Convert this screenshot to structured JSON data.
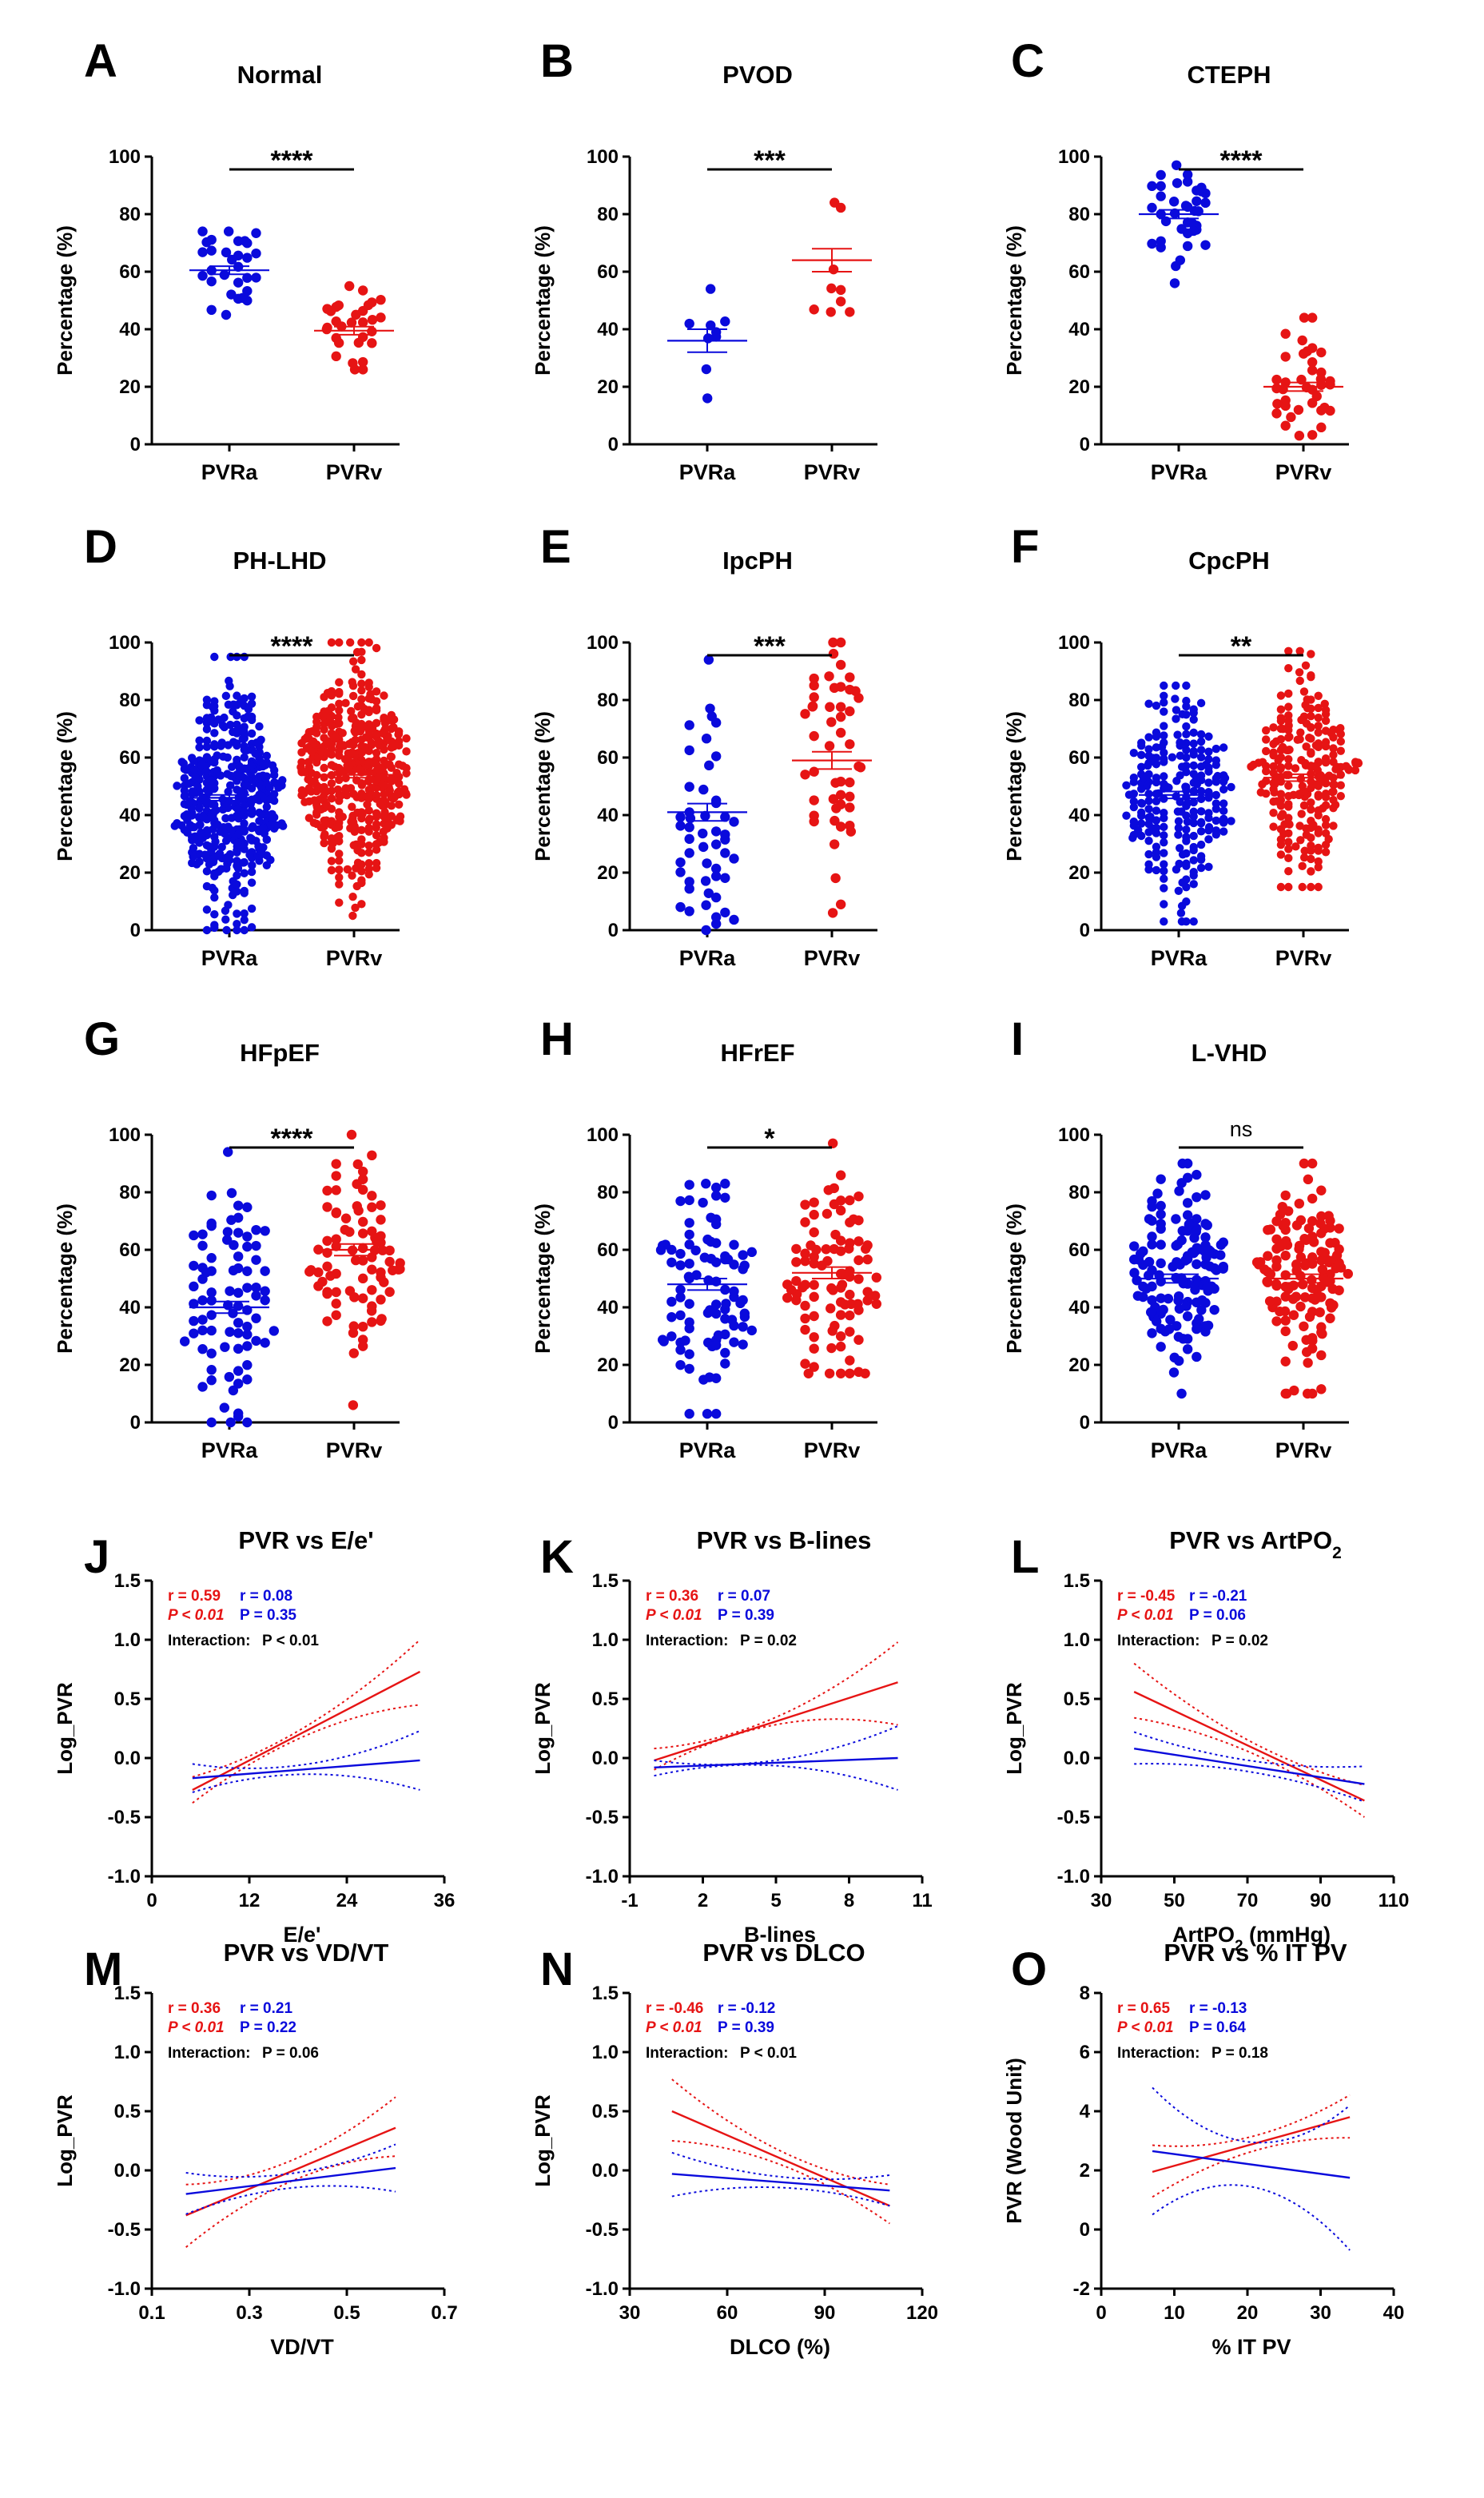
{
  "colors": {
    "PVRa": "#0a0adc",
    "PVRv": "#e61414"
  },
  "chart_data": [
    {
      "id": "A",
      "type": "scatter",
      "title": "Normal",
      "ylabel": "Percentage (%)",
      "ylim": [
        0,
        100
      ],
      "yticks": [
        "0",
        "20",
        "40",
        "60",
        "80",
        "100"
      ],
      "categories": [
        "PVRa",
        "PVRv"
      ],
      "significance": "****",
      "n": [
        30,
        30
      ],
      "means": [
        60.5,
        39.5
      ],
      "sem": [
        1.4,
        1.4
      ],
      "ranges": [
        [
          45,
          74
        ],
        [
          26,
          55
        ]
      ],
      "spread": [
        7,
        7
      ]
    },
    {
      "id": "B",
      "type": "scatter",
      "title": "PVOD",
      "ylabel": "Percentage (%)",
      "ylim": [
        0,
        100
      ],
      "yticks": [
        "0",
        "20",
        "40",
        "60",
        "80",
        "100"
      ],
      "categories": [
        "PVRa",
        "PVRv"
      ],
      "significance": "***",
      "n": [
        9,
        9
      ],
      "means": [
        36,
        64
      ],
      "sem": [
        4,
        4
      ],
      "ranges": [
        [
          16,
          54
        ],
        [
          46,
          84
        ]
      ],
      "spread": [
        12,
        12
      ]
    },
    {
      "id": "C",
      "type": "scatter",
      "title": "CTEPH",
      "ylabel": "Percentage (%)",
      "ylim": [
        0,
        100
      ],
      "yticks": [
        "0",
        "20",
        "40",
        "60",
        "80",
        "100"
      ],
      "categories": [
        "PVRa",
        "PVRv"
      ],
      "significance": "****",
      "n": [
        38,
        38
      ],
      "means": [
        80,
        20
      ],
      "sem": [
        1.5,
        1.5
      ],
      "ranges": [
        [
          56,
          97
        ],
        [
          3,
          44
        ]
      ],
      "spread": [
        8,
        9
      ]
    },
    {
      "id": "D",
      "type": "scatter",
      "title": "PH-LHD",
      "ylabel": "Percentage (%)",
      "ylim": [
        0,
        100
      ],
      "yticks": [
        "0",
        "20",
        "40",
        "60",
        "80",
        "100"
      ],
      "categories": [
        "PVRa",
        "PVRv"
      ],
      "significance": "****",
      "n": [
        450,
        450
      ],
      "means": [
        46,
        54
      ],
      "sem": [
        1,
        1
      ],
      "ranges": [
        [
          0,
          95
        ],
        [
          5,
          100
        ]
      ],
      "spread": [
        18,
        18
      ]
    },
    {
      "id": "E",
      "type": "scatter",
      "title": "IpcPH",
      "ylabel": "Percentage (%)",
      "ylim": [
        0,
        100
      ],
      "yticks": [
        "0",
        "20",
        "40",
        "60",
        "80",
        "100"
      ],
      "categories": [
        "PVRa",
        "PVRv"
      ],
      "significance": "***",
      "n": [
        50,
        50
      ],
      "means": [
        41,
        59
      ],
      "sem": [
        3,
        3
      ],
      "ranges": [
        [
          0,
          94
        ],
        [
          6,
          100
        ]
      ],
      "spread": [
        20,
        20
      ]
    },
    {
      "id": "F",
      "type": "scatter",
      "title": "CpcPH",
      "ylabel": "Percentage (%)",
      "ylim": [
        0,
        100
      ],
      "yticks": [
        "0",
        "20",
        "40",
        "60",
        "80",
        "100"
      ],
      "categories": [
        "PVRa",
        "PVRv"
      ],
      "significance": "**",
      "n": [
        240,
        240
      ],
      "means": [
        47,
        53
      ],
      "sem": [
        1.2,
        1.2
      ],
      "ranges": [
        [
          3,
          85
        ],
        [
          15,
          97
        ]
      ],
      "spread": [
        17,
        17
      ]
    },
    {
      "id": "G",
      "type": "scatter",
      "title": "HFpEF",
      "ylabel": "Percentage (%)",
      "ylim": [
        0,
        100
      ],
      "yticks": [
        "0",
        "20",
        "40",
        "60",
        "80",
        "100"
      ],
      "categories": [
        "PVRa",
        "PVRv"
      ],
      "significance": "****",
      "n": [
        85,
        85
      ],
      "means": [
        40,
        60
      ],
      "sem": [
        2,
        2
      ],
      "ranges": [
        [
          0,
          94
        ],
        [
          6,
          100
        ]
      ],
      "spread": [
        19,
        19
      ]
    },
    {
      "id": "H",
      "type": "scatter",
      "title": "HFrEF",
      "ylabel": "Percentage (%)",
      "ylim": [
        0,
        100
      ],
      "yticks": [
        "0",
        "20",
        "40",
        "60",
        "80",
        "100"
      ],
      "categories": [
        "PVRa",
        "PVRv"
      ],
      "significance": "*",
      "n": [
        95,
        95
      ],
      "means": [
        48,
        52
      ],
      "sem": [
        2,
        2
      ],
      "ranges": [
        [
          3,
          83
        ],
        [
          17,
          97
        ]
      ],
      "spread": [
        18,
        18
      ]
    },
    {
      "id": "I",
      "type": "scatter",
      "title": "L-VHD",
      "ylabel": "Percentage (%)",
      "ylim": [
        0,
        100
      ],
      "yticks": [
        "0",
        "20",
        "40",
        "60",
        "80",
        "100"
      ],
      "categories": [
        "PVRa",
        "PVRv"
      ],
      "significance": "ns",
      "n": [
        140,
        140
      ],
      "means": [
        50,
        50
      ],
      "sem": [
        1.5,
        1.5
      ],
      "ranges": [
        [
          10,
          90
        ],
        [
          10,
          90
        ]
      ],
      "spread": [
        18,
        18
      ]
    },
    {
      "id": "J",
      "type": "line",
      "title": "PVR vs E/e'",
      "xlabel": "E/e'",
      "ylabel": "Log_PVR",
      "xlim": [
        0,
        36
      ],
      "ylim": [
        -1,
        1.5
      ],
      "xticks": [
        {
          "v": 0,
          "t": "0"
        },
        {
          "v": 12,
          "t": "12"
        },
        {
          "v": 24,
          "t": "24"
        },
        {
          "v": 36,
          "t": "36"
        }
      ],
      "yticks": [
        {
          "v": -1,
          "t": "-1.0"
        },
        {
          "v": -0.5,
          "t": "-0.5"
        },
        {
          "v": 0,
          "t": "0.0"
        },
        {
          "v": 0.5,
          "t": "0.5"
        },
        {
          "v": 1,
          "t": "1.0"
        },
        {
          "v": 1.5,
          "t": "1.5"
        }
      ],
      "stats": {
        "r_red": "r = 0.59",
        "r_blue": "r = 0.08",
        "p_red": "P < 0.01",
        "p_blue": "P = 0.35",
        "interaction_label": "Interaction:",
        "interaction_p": "P < 0.01"
      },
      "series": [
        {
          "name": "PVRv",
          "color": "red",
          "x": [
            5,
            33
          ],
          "fit": [
            -0.27,
            0.73
          ],
          "lower": [
            -0.38,
            0.45
          ],
          "upper": [
            -0.16,
            1.0
          ]
        },
        {
          "name": "PVRa",
          "color": "blue",
          "x": [
            5,
            33
          ],
          "fit": [
            -0.17,
            -0.02
          ],
          "lower": [
            -0.29,
            -0.27
          ],
          "upper": [
            -0.05,
            0.23
          ]
        }
      ]
    },
    {
      "id": "K",
      "type": "line",
      "title": "PVR vs B-lines",
      "xlabel": "B-lines",
      "ylabel": "Log_PVR",
      "xlim": [
        -1,
        11
      ],
      "ylim": [
        -1,
        1.5
      ],
      "xticks": [
        {
          "v": -1,
          "t": "-1"
        },
        {
          "v": 2,
          "t": "2"
        },
        {
          "v": 5,
          "t": "5"
        },
        {
          "v": 8,
          "t": "8"
        },
        {
          "v": 11,
          "t": "11"
        }
      ],
      "yticks": [
        {
          "v": -1,
          "t": "-1.0"
        },
        {
          "v": -0.5,
          "t": "-0.5"
        },
        {
          "v": 0,
          "t": "0.0"
        },
        {
          "v": 0.5,
          "t": "0.5"
        },
        {
          "v": 1,
          "t": "1.0"
        },
        {
          "v": 1.5,
          "t": "1.5"
        }
      ],
      "stats": {
        "r_red": "r = 0.36",
        "r_blue": "r = 0.07",
        "p_red": "P < 0.01",
        "p_blue": "P = 0.39",
        "interaction_label": "Interaction:",
        "interaction_p": "P = 0.02"
      },
      "series": [
        {
          "name": "PVRv",
          "color": "red",
          "x": [
            0,
            10
          ],
          "fit": [
            -0.02,
            0.64
          ],
          "lower": [
            -0.1,
            0.28
          ],
          "upper": [
            0.08,
            0.98
          ]
        },
        {
          "name": "PVRa",
          "color": "blue",
          "x": [
            0,
            10
          ],
          "fit": [
            -0.08,
            0.0
          ],
          "lower": [
            -0.15,
            -0.27
          ],
          "upper": [
            -0.02,
            0.27
          ]
        }
      ]
    },
    {
      "id": "L",
      "type": "line",
      "title": "PVR vs ArtPO",
      "title_sub": "2",
      "xlabel": "ArtPO",
      "xlabel_sub": "2",
      "xlabel_suffix": " (mmHg)",
      "ylabel": "Log_PVR",
      "xlim": [
        30,
        110
      ],
      "ylim": [
        -1,
        1.5
      ],
      "xticks": [
        {
          "v": 30,
          "t": "30"
        },
        {
          "v": 50,
          "t": "50"
        },
        {
          "v": 70,
          "t": "70"
        },
        {
          "v": 90,
          "t": "90"
        },
        {
          "v": 110,
          "t": "110"
        }
      ],
      "yticks": [
        {
          "v": -1,
          "t": "-1.0"
        },
        {
          "v": -0.5,
          "t": "-0.5"
        },
        {
          "v": 0,
          "t": "0.0"
        },
        {
          "v": 0.5,
          "t": "0.5"
        },
        {
          "v": 1,
          "t": "1.0"
        },
        {
          "v": 1.5,
          "t": "1.5"
        }
      ],
      "stats": {
        "r_red": "r = -0.45",
        "r_blue": "r = -0.21",
        "p_red": "P < 0.01",
        "p_blue": "P = 0.06",
        "interaction_label": "Interaction:",
        "interaction_p": "P = 0.02"
      },
      "series": [
        {
          "name": "PVRv",
          "color": "red",
          "x": [
            39,
            102
          ],
          "fit": [
            0.56,
            -0.36
          ],
          "lower": [
            0.34,
            -0.5
          ],
          "upper": [
            0.8,
            -0.23
          ]
        },
        {
          "name": "PVRa",
          "color": "blue",
          "x": [
            39,
            102
          ],
          "fit": [
            0.08,
            -0.22
          ],
          "lower": [
            -0.05,
            -0.37
          ],
          "upper": [
            0.22,
            -0.07
          ]
        }
      ]
    },
    {
      "id": "M",
      "type": "line",
      "title": "PVR vs VD/VT",
      "xlabel": "VD/VT",
      "ylabel": "Log_PVR",
      "xlim": [
        0.1,
        0.7
      ],
      "ylim": [
        -1,
        1.5
      ],
      "xticks": [
        {
          "v": 0.1,
          "t": "0.1"
        },
        {
          "v": 0.3,
          "t": "0.3"
        },
        {
          "v": 0.5,
          "t": "0.5"
        },
        {
          "v": 0.7,
          "t": "0.7"
        }
      ],
      "yticks": [
        {
          "v": -1,
          "t": "-1.0"
        },
        {
          "v": -0.5,
          "t": "-0.5"
        },
        {
          "v": 0,
          "t": "0.0"
        },
        {
          "v": 0.5,
          "t": "0.5"
        },
        {
          "v": 1,
          "t": "1.0"
        },
        {
          "v": 1.5,
          "t": "1.5"
        }
      ],
      "stats": {
        "r_red": "r = 0.36",
        "r_blue": "r = 0.21",
        "p_red": "P < 0.01",
        "p_blue": "P = 0.22",
        "interaction_label": "Interaction:",
        "interaction_p": "P = 0.06"
      },
      "series": [
        {
          "name": "PVRv",
          "color": "red",
          "x": [
            0.17,
            0.6
          ],
          "fit": [
            -0.38,
            0.36
          ],
          "lower": [
            -0.65,
            0.12
          ],
          "upper": [
            -0.12,
            0.62
          ]
        },
        {
          "name": "PVRa",
          "color": "blue",
          "x": [
            0.17,
            0.6
          ],
          "fit": [
            -0.2,
            0.02
          ],
          "lower": [
            -0.37,
            -0.18
          ],
          "upper": [
            -0.02,
            0.22
          ]
        }
      ]
    },
    {
      "id": "N",
      "type": "line",
      "title": "PVR vs DLCO",
      "xlabel": "DLCO (%)",
      "ylabel": "Log_PVR",
      "xlim": [
        30,
        120
      ],
      "ylim": [
        -1,
        1.5
      ],
      "xticks": [
        {
          "v": 30,
          "t": "30"
        },
        {
          "v": 60,
          "t": "60"
        },
        {
          "v": 90,
          "t": "90"
        },
        {
          "v": 120,
          "t": "120"
        }
      ],
      "yticks": [
        {
          "v": -1,
          "t": "-1.0"
        },
        {
          "v": -0.5,
          "t": "-0.5"
        },
        {
          "v": 0,
          "t": "0.0"
        },
        {
          "v": 0.5,
          "t": "0.5"
        },
        {
          "v": 1,
          "t": "1.0"
        },
        {
          "v": 1.5,
          "t": "1.5"
        }
      ],
      "stats": {
        "r_red": "r = -0.46",
        "r_blue": "r = -0.12",
        "p_red": "P < 0.01",
        "p_blue": "P = 0.39",
        "interaction_label": "Interaction:",
        "interaction_p": "P < 0.01"
      },
      "series": [
        {
          "name": "PVRv",
          "color": "red",
          "x": [
            43,
            110
          ],
          "fit": [
            0.5,
            -0.3
          ],
          "lower": [
            0.25,
            -0.45
          ],
          "upper": [
            0.77,
            -0.12
          ]
        },
        {
          "name": "PVRa",
          "color": "blue",
          "x": [
            43,
            110
          ],
          "fit": [
            -0.03,
            -0.17
          ],
          "lower": [
            -0.22,
            -0.3
          ],
          "upper": [
            0.15,
            -0.04
          ]
        }
      ]
    },
    {
      "id": "O",
      "type": "line",
      "title": "PVR vs % IT PV",
      "xlabel": "% IT PV",
      "ylabel": "PVR (Wood Unit)",
      "xlim": [
        0,
        40
      ],
      "ylim": [
        -2,
        8
      ],
      "xticks": [
        {
          "v": 0,
          "t": "0"
        },
        {
          "v": 10,
          "t": "10"
        },
        {
          "v": 20,
          "t": "20"
        },
        {
          "v": 30,
          "t": "30"
        },
        {
          "v": 40,
          "t": "40"
        }
      ],
      "yticks": [
        {
          "v": -2,
          "t": "-2"
        },
        {
          "v": 0,
          "t": "0"
        },
        {
          "v": 2,
          "t": "2"
        },
        {
          "v": 4,
          "t": "4"
        },
        {
          "v": 6,
          "t": "6"
        },
        {
          "v": 8,
          "t": "8"
        }
      ],
      "stats": {
        "r_red": "r = 0.65",
        "r_blue": "r = -0.13",
        "p_red": "P < 0.01",
        "p_blue": "P = 0.64",
        "interaction_label": "Interaction:",
        "interaction_p": "P = 0.18"
      },
      "series": [
        {
          "name": "PVRv",
          "color": "red",
          "x": [
            7,
            34
          ],
          "fit": [
            1.95,
            3.8
          ],
          "lower": [
            1.1,
            3.1
          ],
          "upper": [
            2.85,
            4.55
          ]
        },
        {
          "name": "PVRa",
          "color": "blue",
          "x": [
            7,
            34
          ],
          "fit": [
            2.65,
            1.75
          ],
          "lower": [
            0.5,
            -0.7
          ],
          "upper": [
            4.8,
            4.2
          ]
        }
      ]
    }
  ]
}
